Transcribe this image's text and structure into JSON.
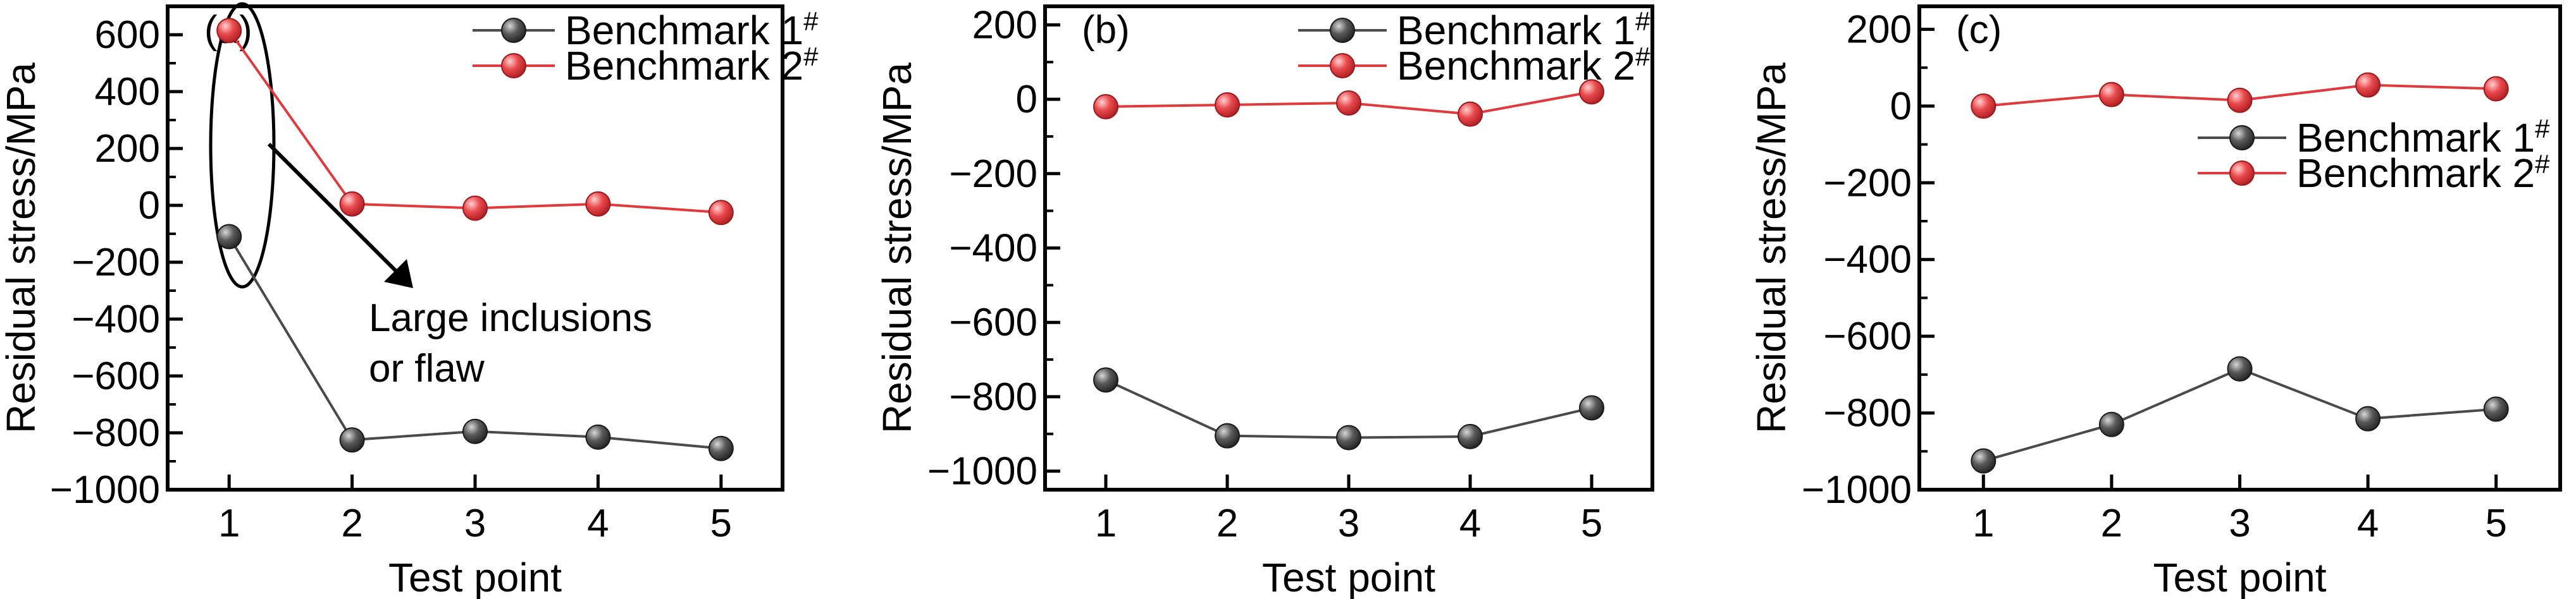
{
  "colors": {
    "benchmark1": "#4a4a4a",
    "benchmark2": "#e0393e"
  },
  "chart_data": [
    {
      "type": "line",
      "panel_label": "(a)",
      "xlabel": "Test point",
      "ylabel": "Residual stress/MPa",
      "x": [
        1,
        2,
        3,
        4,
        5
      ],
      "xlim": [
        0.5,
        5.5
      ],
      "ylim": [
        -1000,
        700
      ],
      "yticks": [
        -1000,
        -800,
        -600,
        -400,
        -200,
        0,
        200,
        400,
        600
      ],
      "ytick_labels": [
        "−1000",
        "−800",
        "−600",
        "−400",
        "−200",
        "0",
        "200",
        "400",
        "600"
      ],
      "xticks": [
        1,
        2,
        3,
        4,
        5
      ],
      "series": [
        {
          "name": "Benchmark 1",
          "sup": "#",
          "values": [
            -110,
            -825,
            -795,
            -815,
            -855
          ]
        },
        {
          "name": "Benchmark 2",
          "sup": "#",
          "values": [
            615,
            5,
            -10,
            5,
            -25
          ]
        }
      ],
      "legend": "top-right",
      "annotation": {
        "lines": [
          "Large inclusions",
          "or flaw"
        ]
      }
    },
    {
      "type": "line",
      "panel_label": "(b)",
      "xlabel": "Test point",
      "ylabel": "Residual stress/MPa",
      "x": [
        1,
        2,
        3,
        4,
        5
      ],
      "xlim": [
        0.5,
        5.5
      ],
      "ylim": [
        -1050,
        250
      ],
      "yticks": [
        -1000,
        -800,
        -600,
        -400,
        -200,
        0,
        200
      ],
      "ytick_labels": [
        "−1000",
        "−800",
        "−600",
        "−400",
        "−200",
        "0",
        "200"
      ],
      "xticks": [
        1,
        2,
        3,
        4,
        5
      ],
      "series": [
        {
          "name": "Benchmark 1",
          "sup": "#",
          "values": [
            -755,
            -905,
            -910,
            -907,
            -830
          ]
        },
        {
          "name": "Benchmark 2",
          "sup": "#",
          "values": [
            -20,
            -15,
            -10,
            -40,
            20
          ]
        }
      ],
      "legend": "top-right"
    },
    {
      "type": "line",
      "panel_label": "(c)",
      "xlabel": "Test point",
      "ylabel": "Residual stress/MPa",
      "x": [
        1,
        2,
        3,
        4,
        5
      ],
      "xlim": [
        0.5,
        5.5
      ],
      "ylim": [
        -1000,
        260
      ],
      "yticks": [
        -1000,
        -800,
        -600,
        -400,
        -200,
        0,
        200
      ],
      "ytick_labels": [
        "−1000",
        "−800",
        "−600",
        "−400",
        "−200",
        "0",
        "200"
      ],
      "xticks": [
        1,
        2,
        3,
        4,
        5
      ],
      "series": [
        {
          "name": "Benchmark 1",
          "sup": "#",
          "values": [
            -925,
            -830,
            -685,
            -815,
            -790
          ]
        },
        {
          "name": "Benchmark 2",
          "sup": "#",
          "values": [
            0,
            30,
            15,
            55,
            45
          ]
        }
      ],
      "legend": "right"
    }
  ]
}
